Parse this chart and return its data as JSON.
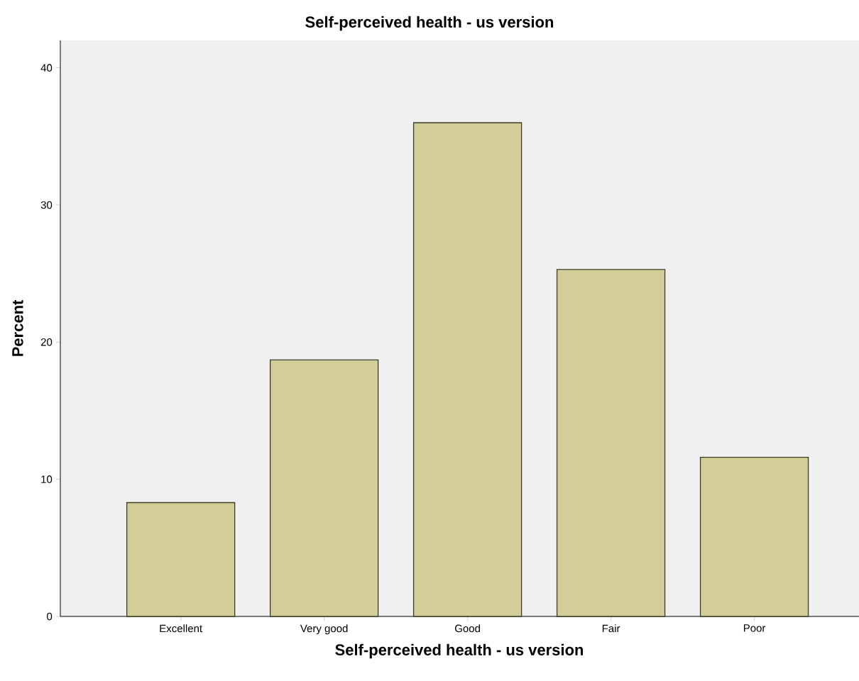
{
  "chart_data": {
    "type": "bar",
    "title": "Self-perceived health - us version",
    "xlabel": "Self-perceived health - us version",
    "ylabel": "Percent",
    "categories": [
      "Excellent",
      "Very good",
      "Good",
      "Fair",
      "Poor"
    ],
    "values": [
      8.3,
      18.7,
      36.0,
      25.3,
      11.6
    ],
    "color": "#d3ce97",
    "ylim": [
      0,
      42
    ],
    "yticks": [
      0,
      10,
      20,
      30,
      40
    ],
    "grid": false
  }
}
